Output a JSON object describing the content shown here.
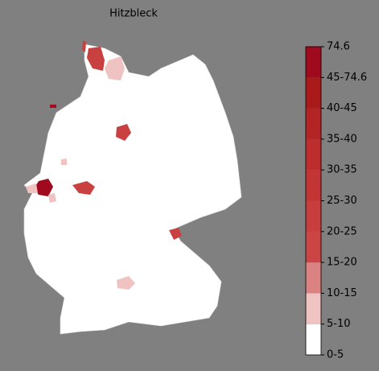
{
  "title": "Hitzbleck",
  "colorbar": {
    "labels": [
      "0-5",
      "5-10",
      "10-15",
      "15-20",
      "20-25",
      "25-30",
      "30-35",
      "35-40",
      "40-45",
      "45-74.6",
      "74.6"
    ],
    "colors": [
      "#ffffff",
      "#f0c3c3",
      "#db8282",
      "#cc4545",
      "#c83d3d",
      "#c33535",
      "#bd2d2d",
      "#b52424",
      "#ab1a1a",
      "#a00a1e"
    ]
  }
}
